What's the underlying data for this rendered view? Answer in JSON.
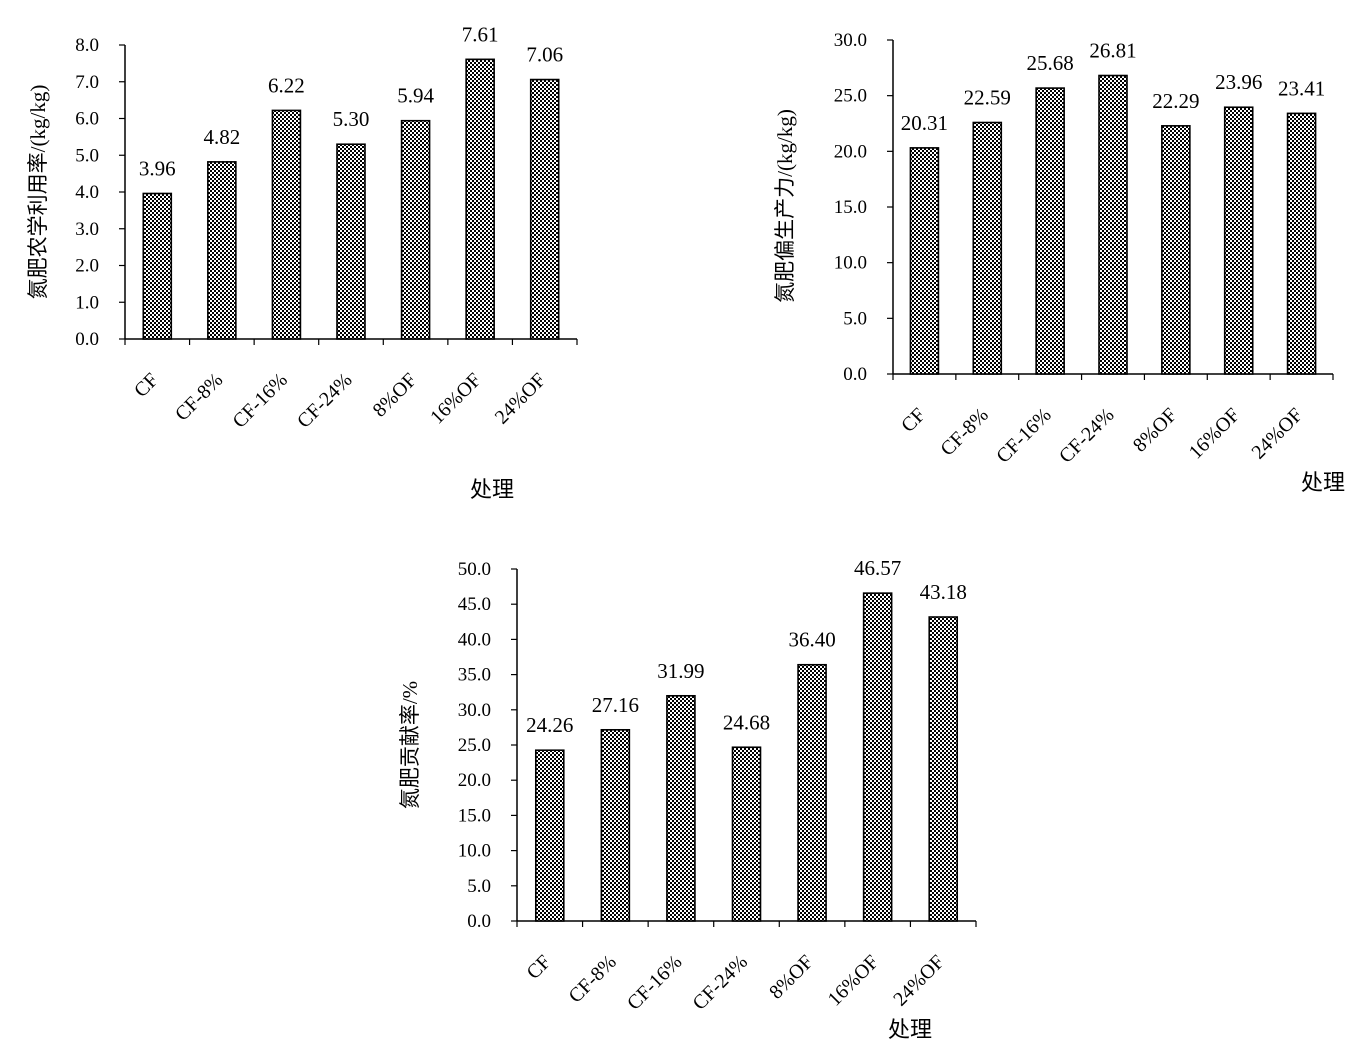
{
  "chart_data": [
    {
      "type": "bar",
      "categories": [
        "CF",
        "CF-8%",
        "CF-16%",
        "CF-24%",
        "8%OF",
        "16%OF",
        "24%OF"
      ],
      "values": [
        3.96,
        4.82,
        6.22,
        5.3,
        5.94,
        7.61,
        7.06
      ],
      "value_labels": [
        "3.96",
        "4.82",
        "6.22",
        "5.30",
        "5.94",
        "7.61",
        "7.06"
      ],
      "ylabel": "氮肥农学利用率/(kg/kg)",
      "xlabel": "处理",
      "ylim": [
        0,
        8
      ],
      "yticks": [
        "0.0",
        "1.0",
        "2.0",
        "3.0",
        "4.0",
        "5.0",
        "6.0",
        "7.0",
        "8.0"
      ],
      "grid": false,
      "bar_fill": "#8a8a8a"
    },
    {
      "type": "bar",
      "categories": [
        "CF",
        "CF-8%",
        "CF-16%",
        "CF-24%",
        "8%OF",
        "16%OF",
        "24%OF"
      ],
      "values": [
        20.31,
        22.59,
        25.68,
        26.81,
        22.29,
        23.96,
        23.41
      ],
      "value_labels": [
        "20.31",
        "22.59",
        "25.68",
        "26.81",
        "22.29",
        "23.96",
        "23.41"
      ],
      "ylabel": "氮肥偏生产力/(kg/kg)",
      "xlabel": "处理",
      "ylim": [
        0,
        30
      ],
      "yticks": [
        "0.0",
        "5.0",
        "10.0",
        "15.0",
        "20.0",
        "25.0",
        "30.0"
      ],
      "grid": false,
      "bar_fill": "#8a8a8a"
    },
    {
      "type": "bar",
      "categories": [
        "CF",
        "CF-8%",
        "CF-16%",
        "CF-24%",
        "8%OF",
        "16%OF",
        "24%OF"
      ],
      "values": [
        24.26,
        27.16,
        31.99,
        24.68,
        36.4,
        46.57,
        43.18
      ],
      "value_labels": [
        "24.26",
        "27.16",
        "31.99",
        "24.68",
        "36.40",
        "46.57",
        "43.18"
      ],
      "ylabel": "氮肥贡献率/%",
      "xlabel": "处理",
      "ylim": [
        0,
        50
      ],
      "yticks": [
        "0.0",
        "5.0",
        "10.0",
        "15.0",
        "20.0",
        "25.0",
        "30.0",
        "35.0",
        "40.0",
        "45.0",
        "50.0"
      ],
      "grid": false,
      "bar_fill": "#8a8a8a"
    }
  ]
}
